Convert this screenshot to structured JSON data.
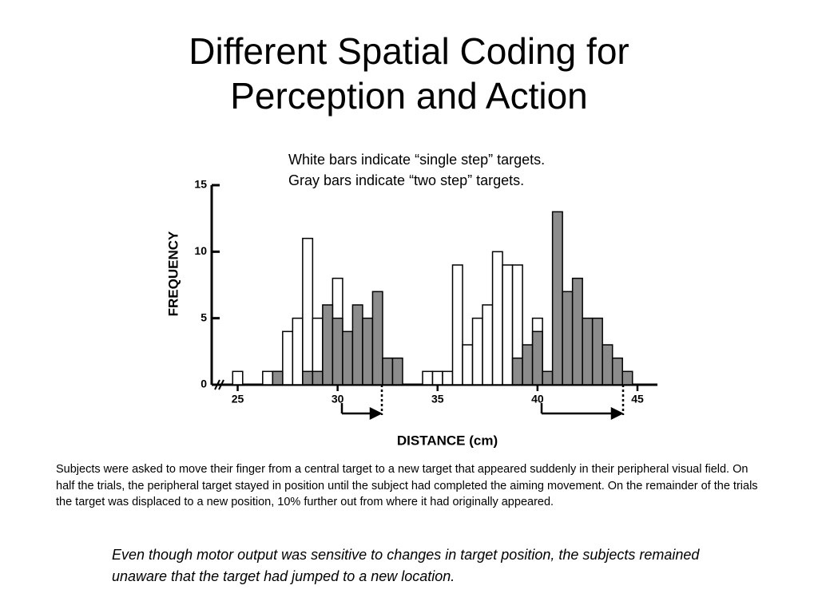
{
  "slide": {
    "title": [
      "Different Spatial Coding for",
      "Perception and Action"
    ],
    "notes": [
      "White bars indicate “single step” targets.",
      "Gray bars indicate “two step” targets."
    ],
    "caption": "Subjects were asked to move their finger from a central target to a new target that appeared suddenly in their peripheral visual field. On half the trials, the peripheral target stayed in position until the subject had completed the aiming movement.  On the remainder of the trials the target was displaced to a new position, 10% further out from where it had originally appeared.",
    "conclusion": "Even though motor output was sensitive to changes in target position, the subjects remained unaware that the target had jumped to a new location."
  },
  "chart_data": {
    "type": "histogram",
    "x_label": "DISTANCE (cm)",
    "y_label": "FREQUENCY",
    "bins": [
      24.75,
      25.25,
      25.75,
      26.25,
      26.75,
      27.25,
      27.75,
      28.25,
      28.75,
      29.25,
      29.75,
      30.25,
      30.75,
      31.25,
      31.75,
      32.25,
      32.75,
      33.25,
      33.75,
      34.25,
      34.75,
      35.25,
      35.75,
      36.25,
      36.75,
      37.25,
      37.75,
      38.25,
      38.75,
      39.25,
      39.75,
      40.25,
      40.75,
      41.25,
      41.75,
      42.25,
      42.75,
      43.25,
      43.75,
      44.25,
      44.75
    ],
    "series": [
      {
        "color": "#ffffff",
        "values": [
          1,
          0,
          0,
          1,
          1,
          4,
          5,
          11,
          5,
          0,
          8,
          0,
          1,
          4,
          0,
          0,
          0,
          0,
          0,
          1,
          1,
          1,
          9,
          3,
          5,
          6,
          10,
          9,
          9,
          0,
          5,
          0,
          0,
          0,
          0,
          0,
          0,
          0,
          0,
          0
        ]
      },
      {
        "color": "#8c8c8c",
        "values": [
          0,
          0,
          0,
          0,
          1,
          0,
          0,
          1,
          1,
          6,
          5,
          4,
          6,
          5,
          7,
          2,
          2,
          0,
          0,
          0,
          0,
          0,
          0,
          0,
          0,
          0,
          0,
          0,
          2,
          3,
          4,
          1,
          13,
          7,
          8,
          5,
          5,
          3,
          2,
          1
        ]
      }
    ],
    "xlim": [
      23.7,
      46
    ],
    "ylim": [
      0,
      15
    ],
    "xticks": [
      25,
      30,
      35,
      40,
      45
    ],
    "yticks": [
      0,
      5,
      10,
      15
    ]
  }
}
